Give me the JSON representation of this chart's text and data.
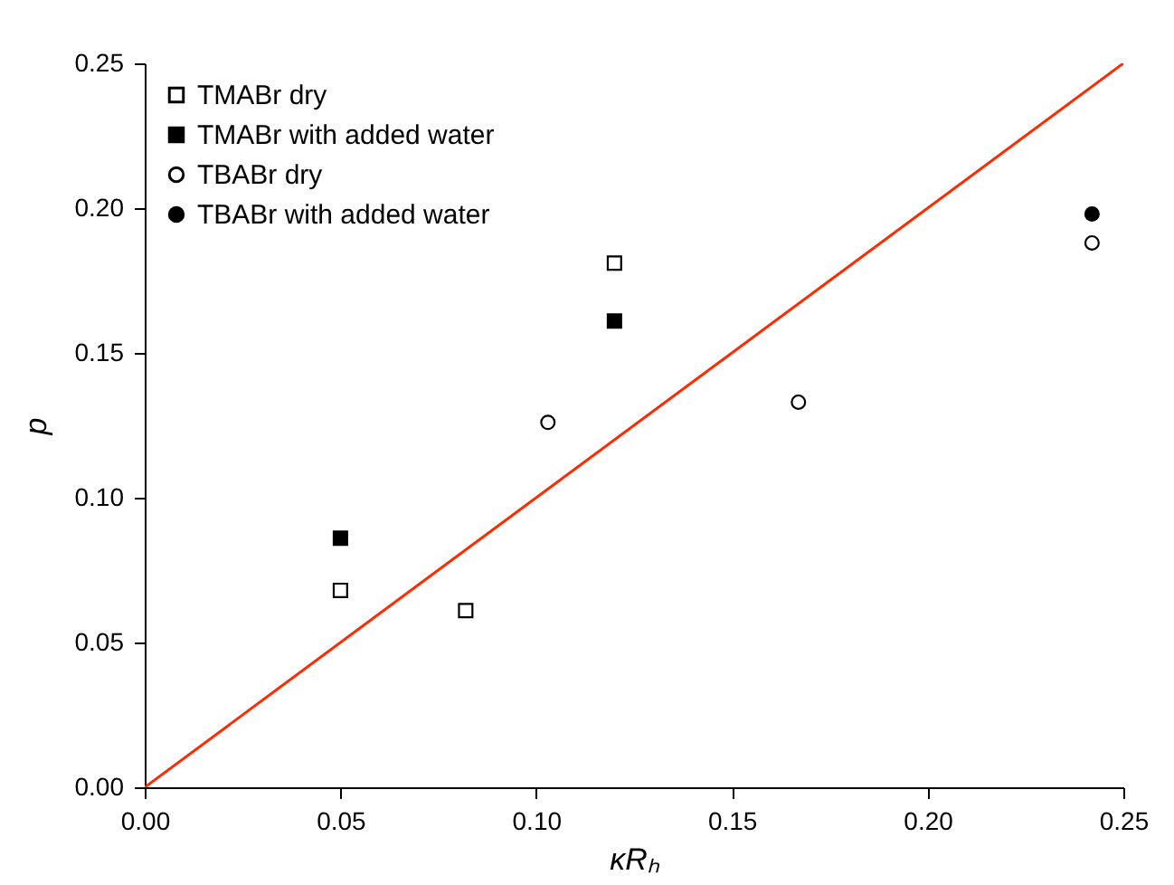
{
  "chart_data": {
    "type": "scatter",
    "xlabel": "κRₕ",
    "ylabel": "p",
    "xlim": [
      0,
      0.25
    ],
    "ylim": [
      0,
      0.25
    ],
    "xticks": [
      {
        "value": 0,
        "label": "0.00"
      },
      {
        "value": 0.05,
        "label": "0.05"
      },
      {
        "value": 0.1,
        "label": "0.10"
      },
      {
        "value": 0.15,
        "label": "0.15"
      },
      {
        "value": 0.2,
        "label": "0.20"
      },
      {
        "value": 0.25,
        "label": "0.25"
      }
    ],
    "yticks": [
      {
        "value": 0,
        "label": "0.00"
      },
      {
        "value": 0.05,
        "label": "0.05"
      },
      {
        "value": 0.1,
        "label": "0.10"
      },
      {
        "value": 0.15,
        "label": "0.15"
      },
      {
        "value": 0.2,
        "label": "0.20"
      },
      {
        "value": 0.25,
        "label": "0.25"
      }
    ],
    "grid": false,
    "legend": "top left",
    "series": [
      {
        "name": "TMABr dry",
        "color": "#ffffff",
        "marker": "square",
        "x": [
          0.05,
          0.082,
          0.12
        ],
        "values": [
          0.068,
          0.061,
          0.181
        ]
      },
      {
        "name": "TMABr with added water",
        "color": "#000000",
        "marker": "square",
        "x": [
          0.05,
          0.12
        ],
        "values": [
          0.086,
          0.161
        ]
      },
      {
        "name": "TBABr dry",
        "color": "#ffffff",
        "marker": "circle",
        "x": [
          0.103,
          0.167,
          0.242
        ],
        "values": [
          0.126,
          0.133,
          0.188
        ]
      },
      {
        "name": "TBABr with added water",
        "color": "#000000",
        "marker": "circle",
        "x": [
          0.242
        ],
        "values": [
          0.198
        ]
      },
      {
        "type": "line",
        "color": "#ff2a00",
        "line_style": "solid",
        "x": [
          0,
          0.25
        ],
        "values": [
          0,
          0.25
        ]
      }
    ]
  }
}
